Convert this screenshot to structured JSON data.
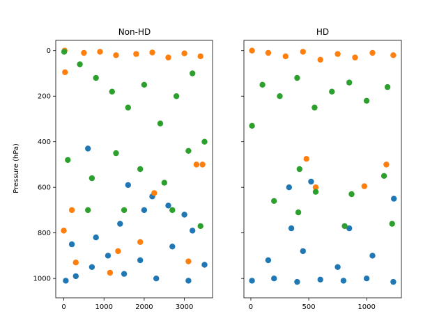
{
  "chart_data": [
    {
      "type": "scatter",
      "title": "Non-HD",
      "xlabel": "",
      "ylabel": "Pressure (hPa)",
      "xlim": [
        -200,
        3700
      ],
      "ylim": [
        1085,
        -45
      ],
      "y_inverted": true,
      "xticks": [
        0,
        1000,
        2000,
        3000
      ],
      "yticks": [
        0,
        200,
        400,
        600,
        800,
        1000
      ],
      "series": [
        {
          "color": "#1f77b4",
          "note": "dense band of points roughly 650-1020 hPa across x 0-3550",
          "points": [
            [
              50,
              1010
            ],
            [
              300,
              990
            ],
            [
              700,
              950
            ],
            [
              1100,
              900
            ],
            [
              1500,
              980
            ],
            [
              1900,
              920
            ],
            [
              2300,
              1000
            ],
            [
              2700,
              860
            ],
            [
              3100,
              1010
            ],
            [
              3500,
              940
            ],
            [
              200,
              850
            ],
            [
              800,
              820
            ],
            [
              1400,
              760
            ],
            [
              2000,
              700
            ],
            [
              2600,
              680
            ],
            [
              3200,
              790
            ],
            [
              600,
              430
            ],
            [
              1600,
              590
            ],
            [
              2200,
              640
            ],
            [
              3000,
              720
            ]
          ]
        },
        {
          "color": "#ff7f0e",
          "note": "mostly 0-60 hPa, scattered outliers lower",
          "points": [
            [
              20,
              0
            ],
            [
              500,
              10
            ],
            [
              900,
              5
            ],
            [
              1300,
              20
            ],
            [
              1800,
              15
            ],
            [
              2200,
              8
            ],
            [
              2600,
              30
            ],
            [
              3000,
              12
            ],
            [
              3400,
              25
            ],
            [
              30,
              95
            ],
            [
              0,
              790
            ],
            [
              200,
              700
            ],
            [
              300,
              930
            ],
            [
              1150,
              975
            ],
            [
              1350,
              880
            ],
            [
              1900,
              840
            ],
            [
              3100,
              925
            ],
            [
              3450,
              500
            ],
            [
              3300,
              500
            ],
            [
              2250,
              625
            ]
          ]
        },
        {
          "color": "#2ca02c",
          "note": "dense cloud roughly 0-600 hPa, scattered band near 700 and lower",
          "points": [
            [
              10,
              5
            ],
            [
              400,
              60
            ],
            [
              800,
              120
            ],
            [
              1200,
              180
            ],
            [
              1600,
              250
            ],
            [
              2000,
              150
            ],
            [
              2400,
              320
            ],
            [
              2800,
              200
            ],
            [
              3200,
              100
            ],
            [
              3500,
              400
            ],
            [
              100,
              480
            ],
            [
              700,
              560
            ],
            [
              1300,
              450
            ],
            [
              1900,
              520
            ],
            [
              2500,
              580
            ],
            [
              3100,
              440
            ],
            [
              600,
              700
            ],
            [
              1500,
              700
            ],
            [
              2700,
              700
            ],
            [
              3400,
              770
            ]
          ]
        }
      ]
    },
    {
      "type": "scatter",
      "title": "HD",
      "xlabel": "",
      "ylabel": "",
      "xlim": [
        -60,
        1300
      ],
      "ylim": [
        1085,
        -45
      ],
      "y_inverted": true,
      "y_ticks_shared": true,
      "xticks": [
        0,
        500,
        1000
      ],
      "series": [
        {
          "color": "#1f77b4",
          "note": "dense band near 1000-1020 hPa, sparse up to ~830",
          "points": [
            [
              10,
              1010
            ],
            [
              200,
              1000
            ],
            [
              400,
              1015
            ],
            [
              600,
              1005
            ],
            [
              800,
              1010
            ],
            [
              1000,
              1000
            ],
            [
              1230,
              1015
            ],
            [
              150,
              920
            ],
            [
              450,
              880
            ],
            [
              750,
              950
            ],
            [
              1050,
              900
            ],
            [
              330,
              600
            ],
            [
              520,
              575
            ],
            [
              1235,
              650
            ],
            [
              350,
              780
            ],
            [
              850,
              780
            ]
          ]
        },
        {
          "color": "#ff7f0e",
          "note": "dense band roughly 0-80 hPa",
          "points": [
            [
              10,
              0
            ],
            [
              150,
              10
            ],
            [
              300,
              25
            ],
            [
              450,
              5
            ],
            [
              600,
              40
            ],
            [
              750,
              15
            ],
            [
              900,
              30
            ],
            [
              1050,
              10
            ],
            [
              1230,
              20
            ],
            [
              480,
              475
            ],
            [
              560,
              600
            ],
            [
              980,
              595
            ],
            [
              1170,
              500
            ]
          ]
        },
        {
          "color": "#2ca02c",
          "note": "dense band roughly 80-300 hPa, sparse below",
          "points": [
            [
              10,
              330
            ],
            [
              100,
              150
            ],
            [
              250,
              200
            ],
            [
              400,
              120
            ],
            [
              550,
              250
            ],
            [
              700,
              180
            ],
            [
              850,
              140
            ],
            [
              1000,
              220
            ],
            [
              1180,
              160
            ],
            [
              200,
              660
            ],
            [
              420,
              520
            ],
            [
              560,
              620
            ],
            [
              870,
              630
            ],
            [
              1150,
              550
            ],
            [
              1220,
              760
            ],
            [
              410,
              710
            ],
            [
              810,
              770
            ]
          ]
        }
      ]
    }
  ]
}
